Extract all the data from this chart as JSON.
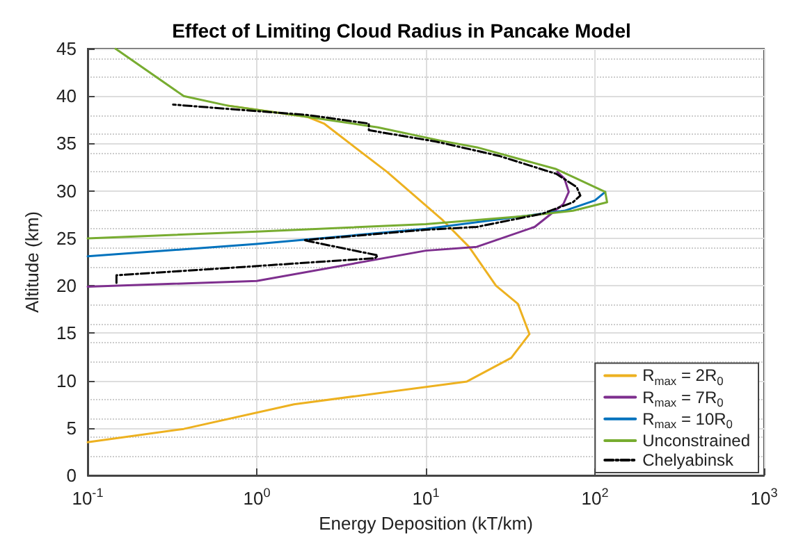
{
  "chart_data": {
    "type": "line",
    "title": "Effect of Limiting Cloud Radius in Pancake Model",
    "xlabel": "Energy Deposition (kT/km)",
    "ylabel": "Altitude (km)",
    "log": "x",
    "xlim": [
      0.1,
      1000
    ],
    "xticks": [
      {
        "value": 0.1,
        "label": "10$^{-1}$"
      },
      {
        "value": 1,
        "label": "10$^{0}$"
      },
      {
        "value": 10,
        "label": "10$^{1}$"
      },
      {
        "value": 100,
        "label": "10$^{2}$"
      },
      {
        "value": 1000,
        "label": "10$^{3}$"
      }
    ],
    "ylim": [
      0,
      45
    ],
    "yticks": [
      0,
      5,
      10,
      15,
      20,
      25,
      30,
      35,
      40,
      45
    ],
    "grid": true,
    "legend": "bottom right",
    "series": [
      {
        "name": "R$_{max}$ = 2R$_{0}$",
        "color": "#edb120",
        "x": [
          0.1,
          0.37,
          1.66,
          17.5,
          32,
          41,
          35,
          26,
          18,
          12.6,
          5.9,
          2.5,
          2.0,
          0.67
        ],
        "values": [
          3.5,
          4.9,
          7.5,
          9.9,
          12.4,
          14.9,
          18.1,
          20,
          24.1,
          26.9,
          32,
          37.1,
          37.8,
          39
        ]
      },
      {
        "name": "R$_{max}$ = 7R$_{0}$",
        "color": "#7e2f8e",
        "x": [
          0.1,
          1,
          10,
          20,
          44,
          65,
          70,
          66,
          60
        ],
        "values": [
          19.9,
          20.5,
          23.7,
          24.1,
          26.2,
          28.6,
          29.9,
          31.3,
          32
        ]
      },
      {
        "name": "R$_{max}$ = 10R$_{0}$",
        "color": "#0072bd",
        "x": [
          0.1,
          1,
          10,
          66,
          100,
          115
        ],
        "values": [
          23.1,
          24.4,
          26,
          27.9,
          29,
          29.9
        ]
      },
      {
        "name": "Unconstrained",
        "color": "#77ac30",
        "x": [
          0.1,
          1,
          10,
          36,
          74,
          118,
          115,
          59,
          20,
          12.2,
          5.2,
          2.0,
          0.67,
          0.37,
          0.146
        ],
        "values": [
          25,
          25.7,
          26.5,
          27.3,
          27.9,
          28.8,
          29.9,
          32.3,
          34.6,
          35.3,
          36.7,
          37.8,
          39,
          40,
          45
        ]
      },
      {
        "name": "Chelyabinsk",
        "color": "#000000",
        "line_style": "dashed",
        "x": [
          0.148,
          0.148,
          5,
          5.2,
          1.9,
          10,
          20,
          49,
          74,
          82,
          78,
          59,
          27,
          11.5,
          4.6,
          4.6,
          2.0,
          0.32
        ],
        "values": [
          20.3,
          21.1,
          22.9,
          23.2,
          24.8,
          25.9,
          26.2,
          27.6,
          28.8,
          29.5,
          30.4,
          31.8,
          33.7,
          35.2,
          36.4,
          37.1,
          38,
          39.1
        ]
      }
    ]
  }
}
